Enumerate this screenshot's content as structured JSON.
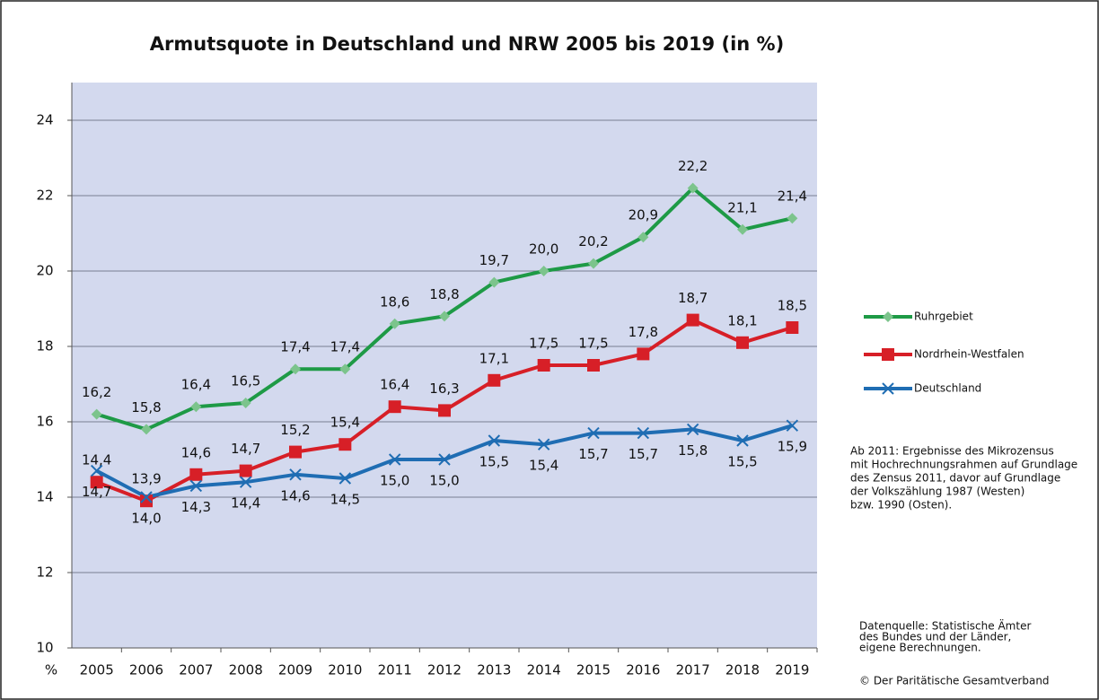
{
  "chart_data": {
    "type": "line",
    "title": "Armutsquote in Deutschland und NRW 2005 bis 2019 (in %)",
    "y_label": "%",
    "categories": [
      "2005",
      "2006",
      "2007",
      "2008",
      "2009",
      "2010",
      "2011",
      "2012",
      "2013",
      "2014",
      "2015",
      "2016",
      "2017",
      "2018",
      "2019"
    ],
    "series": [
      {
        "name": "Ruhrgebiet",
        "color": "#1e9a46",
        "marker_color": "#7cc48c",
        "values": [
          16.2,
          15.8,
          16.4,
          16.5,
          17.4,
          17.4,
          18.6,
          18.8,
          19.7,
          20.0,
          20.2,
          20.9,
          22.2,
          21.1,
          21.4
        ],
        "value_labels": [
          "16,2",
          "15,8",
          "16,4",
          "16,5",
          "17,4",
          "17,4",
          "18,6",
          "18,8",
          "19,7",
          "20,0",
          "20,2",
          "20,9",
          "22,2",
          "21,1",
          "21,4"
        ]
      },
      {
        "name": "Nordrhein-Westfalen",
        "color": "#d71f27",
        "marker_color": "#d71f27",
        "values": [
          14.4,
          13.9,
          14.6,
          14.7,
          15.2,
          15.4,
          16.4,
          16.3,
          17.1,
          17.5,
          17.5,
          17.8,
          18.7,
          18.1,
          18.5
        ],
        "value_labels": [
          "14,4",
          "13,9",
          "14,6",
          "14,7",
          "15,2",
          "15,4",
          "16,4",
          "16,3",
          "17,1",
          "17,5",
          "17,5",
          "17,8",
          "18,7",
          "18,1",
          "18,5"
        ]
      },
      {
        "name": "Deutschland",
        "color": "#1f6db3",
        "marker_color": "#1f6db3",
        "values": [
          14.7,
          14.0,
          14.3,
          14.4,
          14.6,
          14.5,
          15.0,
          15.0,
          15.5,
          15.4,
          15.7,
          15.7,
          15.8,
          15.5,
          15.9
        ],
        "value_labels": [
          "14,7",
          "14,0",
          "14,3",
          "14,4",
          "14,6",
          "14,5",
          "15,0",
          "15,0",
          "15,5",
          "15,4",
          "15,7",
          "15,7",
          "15,8",
          "15,5",
          "15,9"
        ]
      }
    ],
    "ylim": [
      10,
      25
    ],
    "yticks": [
      10,
      12,
      14,
      16,
      18,
      20,
      22,
      24
    ],
    "grid": true,
    "plot_background": "#d3d9ee",
    "legend": "right",
    "notes": [
      "Ab 2011: Ergebnisse des Mikrozensus",
      "mit Hochrechnungsrahmen auf Grundlage",
      "des Zensus 2011, davor auf Grundlage",
      "der Volkszählung 1987 (Westen)",
      "bzw. 1990 (Osten)."
    ],
    "source": [
      "Datenquelle: Statistische Ämter",
      "des Bundes und der Länder,",
      "eigene Berechnungen."
    ],
    "copyright": "© Der Paritätische Gesamtverband"
  }
}
